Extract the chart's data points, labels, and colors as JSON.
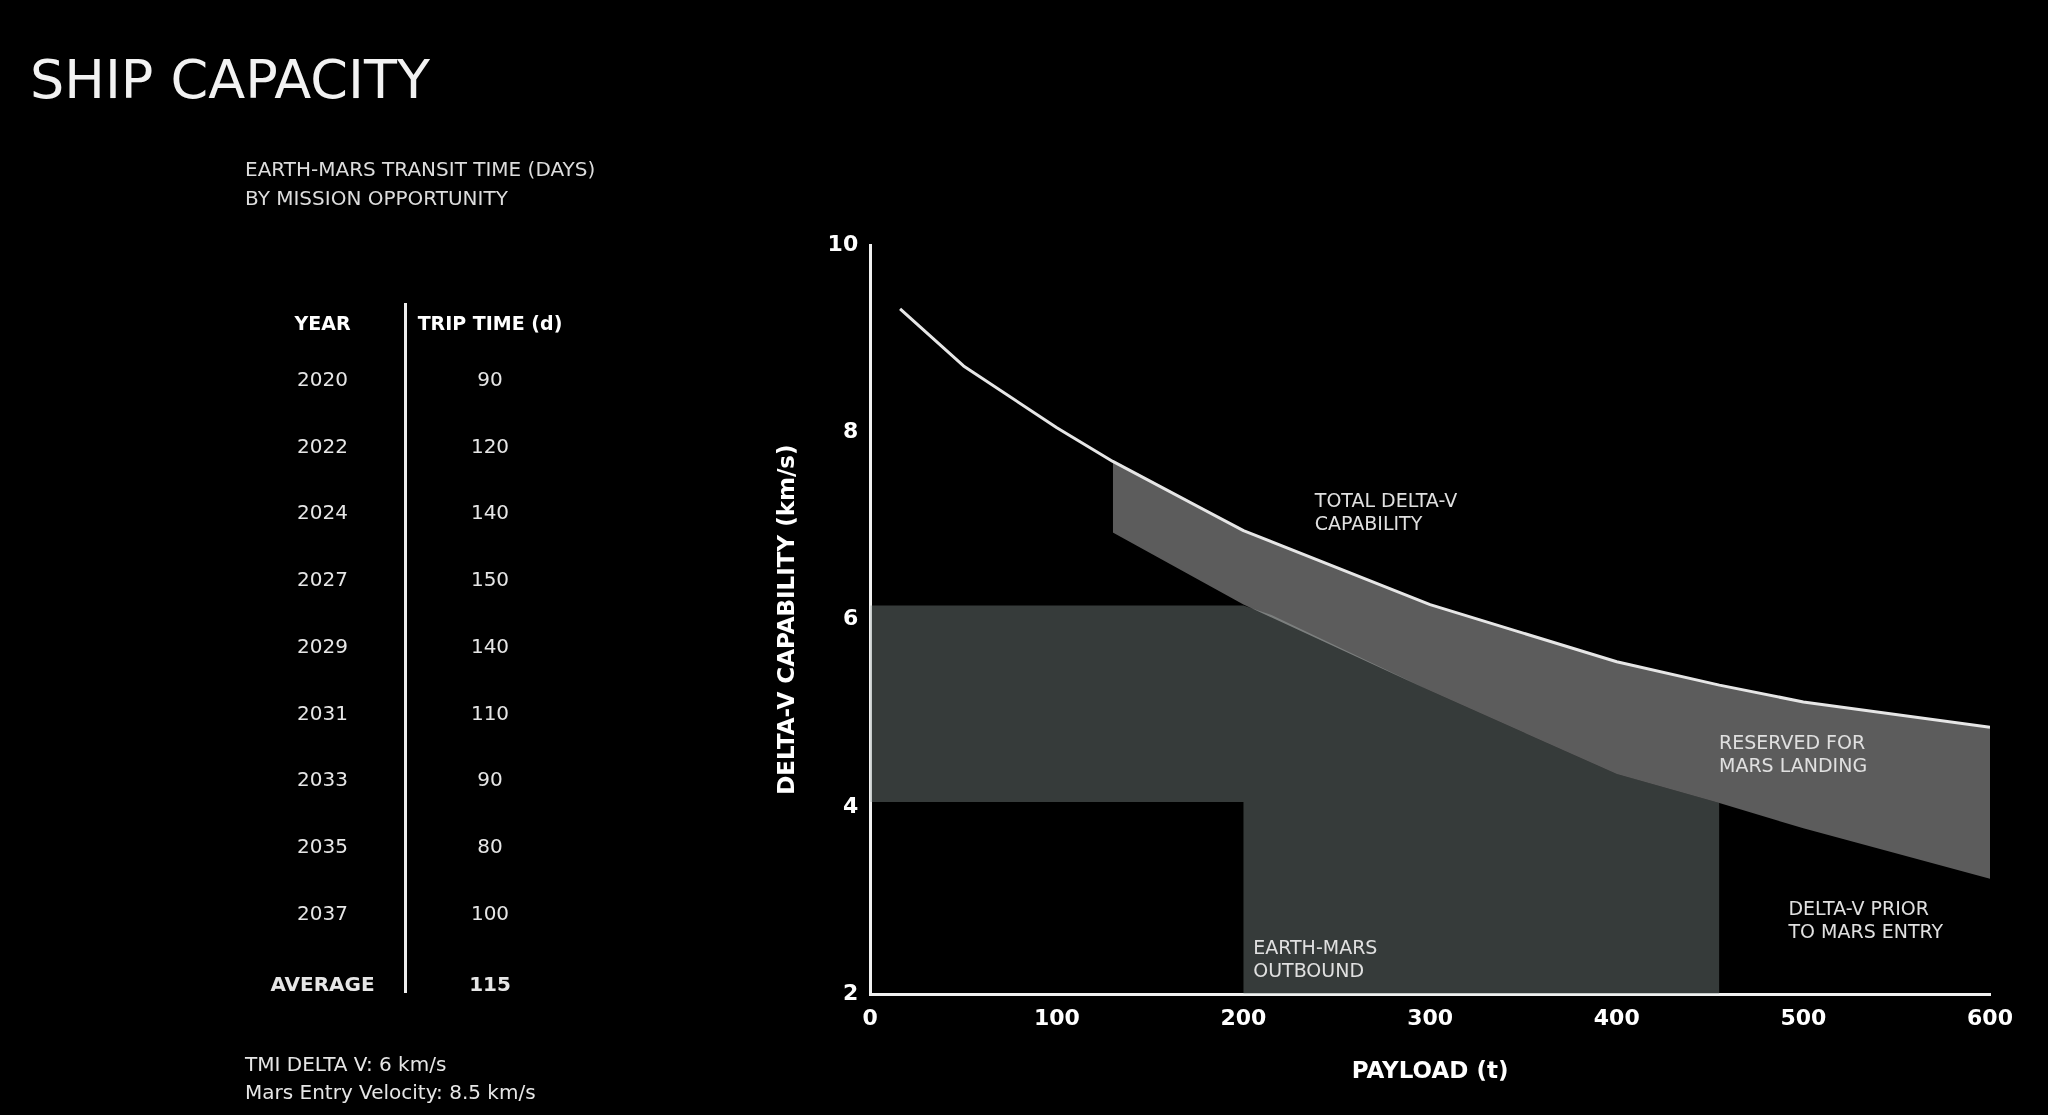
{
  "chart_data": [
    {
      "type": "heatmap",
      "title": "SHIP CAPACITY",
      "subtitle": "EARTH-MARS TRANSIT TIME (DAYS)\nBY MISSION OPPORTUNITY",
      "ylabel": "YEAR",
      "categories": [
        "TRIP TIME (d)"
      ],
      "y_categories": [
        "2020",
        "2022",
        "2024",
        "2027",
        "2029",
        "2031",
        "2033",
        "2035",
        "2037",
        "AVERAGE"
      ],
      "cells": [
        [
          90
        ],
        [
          120
        ],
        [
          140
        ],
        [
          150
        ],
        [
          140
        ],
        [
          110
        ],
        [
          90
        ],
        [
          80
        ],
        [
          100
        ],
        [
          115
        ]
      ],
      "data_labels": true,
      "annotations": [
        "TMI DELTA V: 6 km/s",
        "Mars Entry Velocity: 8.5 km/s"
      ]
    },
    {
      "type": "line",
      "xlabel": "PAYLOAD (t)",
      "ylabel": "DELTA-V CAPABILITY (km/s)",
      "xlim": [
        0,
        600
      ],
      "xticks": [
        0,
        100,
        200,
        300,
        400,
        500,
        600
      ],
      "ylim": [
        2,
        10
      ],
      "yticks": [
        2,
        4,
        6,
        8,
        10
      ],
      "grid": false,
      "legend": false,
      "series": [
        {
          "type": "line",
          "color": "#879490",
          "x": [
            0,
            200,
            200,
            215,
            300,
            400,
            455
          ],
          "values": [
            null,
            null,
            null,
            null,
            null,
            null,
            null
          ],
          "lower": [
            4.05,
            4.05,
            2,
            2,
            2,
            2,
            2
          ],
          "upper": [
            6.15,
            6.15,
            6.15,
            6.05,
            5.24,
            4.35,
            4.04
          ]
        },
        {
          "type": "line",
          "color": "#e6e6e6",
          "x": [
            16,
            50,
            100,
            130,
            200,
            300,
            400,
            455,
            500,
            600
          ],
          "values": [
            9.32,
            8.71,
            8.05,
            7.69,
            6.95,
            6.16,
            5.55,
            5.3,
            5.12,
            4.85
          ],
          "lower": [
            null,
            null,
            null,
            6.93,
            6.16,
            5.24,
            4.35,
            4.04,
            3.77,
            3.23
          ],
          "upper": [
            null,
            null,
            null,
            7.69,
            6.95,
            6.16,
            5.55,
            5.3,
            5.12,
            4.85
          ]
        }
      ],
      "annotations": [
        "TOTAL DELTA-V\nCAPABILITY",
        "RESERVED FOR\nMARS LANDING",
        "DELTA-V PRIOR\nTO MARS ENTRY",
        "EARTH-MARS\nOUTBOUND"
      ]
    }
  ]
}
